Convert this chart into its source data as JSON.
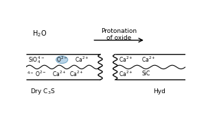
{
  "bg_color": "#ffffff",
  "title": "Protonation\nof oxide",
  "ellipse_color": "#b8d4e8",
  "ellipse_edge": "#7aaac8",
  "fs_ions": 5.5,
  "fs_labels": 6.5,
  "fs_h2o": 7.0,
  "fs_title": 6.5
}
